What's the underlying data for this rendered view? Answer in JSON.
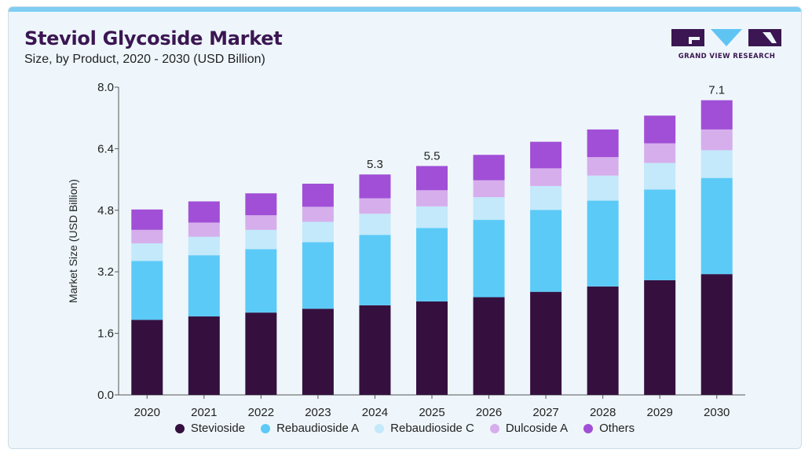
{
  "header": {
    "title": "Steviol Glycoside Market",
    "subtitle": "Size, by Product, 2020 - 2030 (USD Billion)"
  },
  "logo": {
    "text": "GRAND VIEW RESEARCH"
  },
  "colors": {
    "title": "#3b1652",
    "background": "#eef6fb",
    "accent_bar": "#7fcdf3",
    "logo_dark": "#3b1652",
    "logo_light": "#5fc4f2"
  },
  "chart_data": {
    "type": "bar",
    "stacked": true,
    "title": "Steviol Glycoside Market",
    "subtitle": "Size, by Product, 2020 - 2030 (USD Billion)",
    "xlabel": "",
    "ylabel": "Market Size (USD Billion)",
    "ylim": [
      0,
      8.0
    ],
    "yticks": [
      "0.0",
      "1.6",
      "3.2",
      "4.8",
      "6.4",
      "8.0"
    ],
    "grid": false,
    "legend_position": "bottom",
    "categories": [
      "2020",
      "2021",
      "2022",
      "2023",
      "2024",
      "2025",
      "2026",
      "2027",
      "2028",
      "2029",
      "2030"
    ],
    "series": [
      {
        "name": "Stevioside",
        "color": "#35103f",
        "values": [
          1.95,
          2.04,
          2.14,
          2.24,
          2.33,
          2.43,
          2.54,
          2.68,
          2.82,
          2.98,
          3.14
        ]
      },
      {
        "name": "Rebaudioside A",
        "color": "#5ccaf7",
        "values": [
          1.53,
          1.59,
          1.65,
          1.73,
          1.83,
          1.91,
          2.01,
          2.13,
          2.23,
          2.36,
          2.5
        ]
      },
      {
        "name": "Rebaudioside C",
        "color": "#c3e9fb",
        "values": [
          0.46,
          0.48,
          0.5,
          0.53,
          0.55,
          0.56,
          0.59,
          0.62,
          0.65,
          0.69,
          0.72
        ]
      },
      {
        "name": "Dulcoside A",
        "color": "#d6aeec",
        "values": [
          0.35,
          0.37,
          0.38,
          0.39,
          0.4,
          0.42,
          0.44,
          0.46,
          0.48,
          0.51,
          0.54
        ]
      },
      {
        "name": "Others",
        "color": "#a14fd6",
        "values": [
          0.53,
          0.55,
          0.57,
          0.6,
          0.62,
          0.63,
          0.66,
          0.69,
          0.72,
          0.72,
          0.76
        ]
      }
    ],
    "data_labels": [
      {
        "category": "2024",
        "text": "5.3"
      },
      {
        "category": "2025",
        "text": "5.5"
      },
      {
        "category": "2030",
        "text": "7.1"
      }
    ]
  }
}
